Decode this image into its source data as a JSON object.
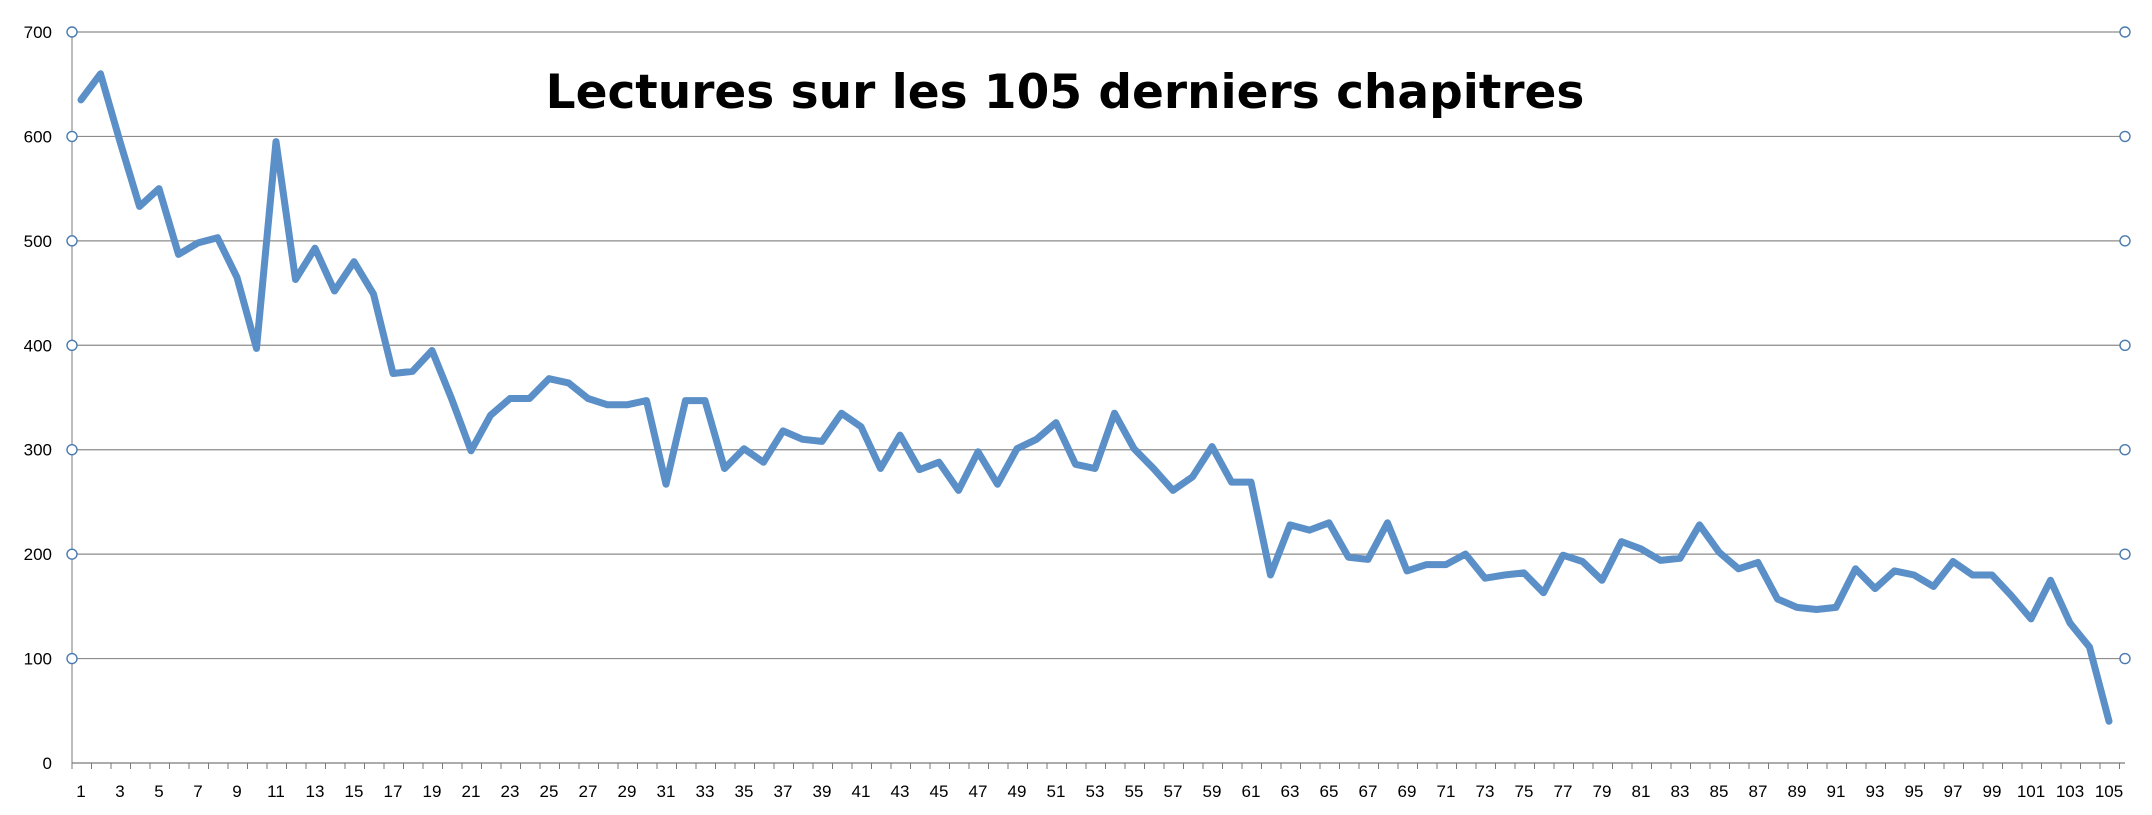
{
  "chart_data": {
    "type": "line",
    "title": "Lectures sur les 105 derniers chapitres",
    "xlabel": "",
    "ylabel": "",
    "ylim": [
      0,
      700
    ],
    "y_ticks": [
      0,
      100,
      200,
      300,
      400,
      500,
      600,
      700
    ],
    "x_tick_labels": [
      1,
      3,
      5,
      7,
      9,
      11,
      13,
      15,
      17,
      19,
      21,
      23,
      25,
      27,
      29,
      31,
      33,
      35,
      37,
      39,
      41,
      43,
      45,
      47,
      49,
      51,
      53,
      55,
      57,
      59,
      61,
      63,
      65,
      67,
      69,
      71,
      73,
      75,
      77,
      79,
      81,
      83,
      85,
      87,
      89,
      91,
      93,
      95,
      97,
      99,
      101,
      103,
      105
    ],
    "grid": "horizontal",
    "legend": "none",
    "colors": {
      "line": "#5b8fc7",
      "grid": "#8c8c8c",
      "axis": "#7a7a7a",
      "marker_stroke": "#4a7bb0"
    },
    "series": [
      {
        "values": [
          635,
          660,
          595,
          533,
          550,
          487,
          498,
          503,
          465,
          397,
          595,
          463,
          493,
          452,
          480,
          449,
          373,
          375,
          395,
          349,
          299,
          333,
          349,
          349,
          368,
          364,
          349,
          343,
          343,
          347,
          267,
          347,
          347,
          282,
          301,
          288,
          318,
          310,
          308,
          335,
          322,
          282,
          314,
          281,
          288,
          261,
          298,
          267,
          301,
          310,
          326,
          286,
          282,
          335,
          301,
          282,
          261,
          274,
          303,
          269,
          269,
          180,
          228,
          223,
          230,
          197,
          195,
          230,
          184,
          190,
          190,
          200,
          177,
          180,
          182,
          163,
          199,
          193,
          175,
          212,
          205,
          194,
          196,
          228,
          202,
          186,
          192,
          157,
          149,
          147,
          149,
          186,
          167,
          184,
          180,
          169,
          193,
          180,
          180,
          160,
          138,
          175,
          134,
          111,
          40
        ]
      }
    ]
  }
}
